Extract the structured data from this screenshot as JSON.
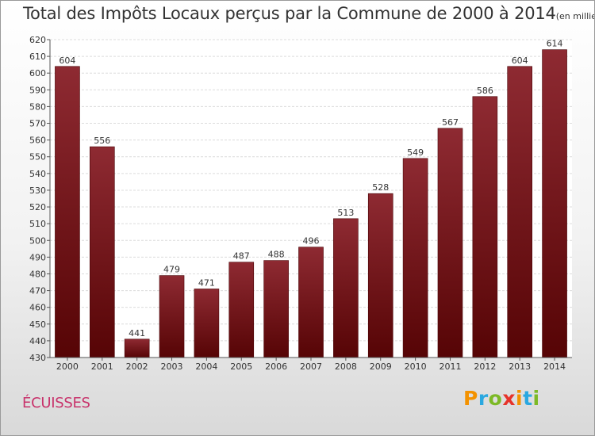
{
  "chart_data": {
    "type": "bar",
    "title": "Total des Impôts Locaux perçus par la Commune de 2000 à 2014",
    "unit_label": "(en milliers d'€)",
    "categories": [
      "2000",
      "2001",
      "2002",
      "2003",
      "2004",
      "2005",
      "2006",
      "2007",
      "2008",
      "2009",
      "2010",
      "2011",
      "2012",
      "2013",
      "2014"
    ],
    "values": [
      604,
      556,
      441,
      479,
      471,
      487,
      488,
      496,
      513,
      528,
      549,
      567,
      586,
      604,
      614
    ],
    "ylim": [
      430,
      620
    ],
    "ytick_step": 10,
    "grid": true,
    "bar_color": "#6b0f14",
    "xlabel": "",
    "ylabel": ""
  },
  "commune": "ÉCUISSES",
  "logo": {
    "text": "Proxiti",
    "letters": [
      "P",
      "r",
      "o",
      "x",
      "i",
      "t",
      "i"
    ],
    "colors": [
      "#f39200",
      "#2aa8e0",
      "#7cb926",
      "#e6332a",
      "#f39200",
      "#2aa8e0",
      "#7cb926"
    ]
  }
}
